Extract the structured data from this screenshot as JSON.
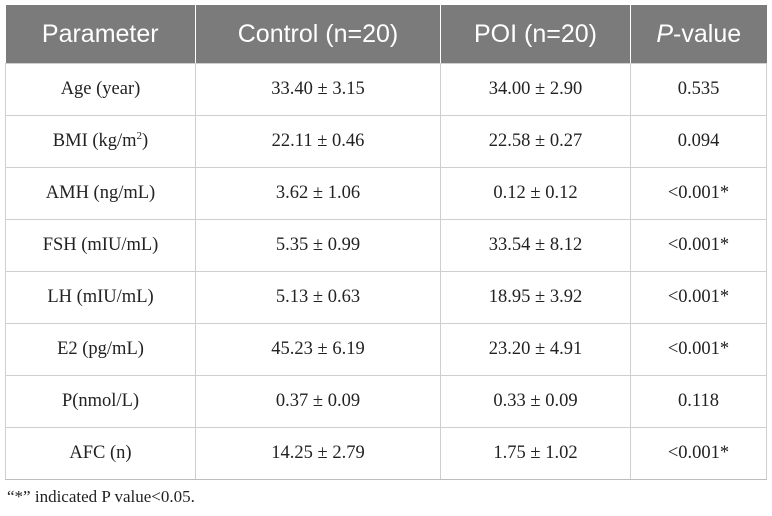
{
  "table": {
    "headers": [
      "Parameter",
      "Control (n=20)",
      "POI (n=20)",
      "P",
      "-value"
    ],
    "rows": [
      {
        "param": "Age (year)",
        "control": "33.40 ± 3.15",
        "poi": "34.00 ± 2.90",
        "p": "0.535"
      },
      {
        "param_main": "BMI (kg/m",
        "param_sup": "2",
        "param_end": ")",
        "control": "22.11 ± 0.46",
        "poi": "22.58 ± 0.27",
        "p": "0.094"
      },
      {
        "param": "AMH (ng/mL)",
        "control": "3.62 ± 1.06",
        "poi": "0.12 ± 0.12",
        "p": "<0.001*"
      },
      {
        "param": "FSH (mIU/mL)",
        "control": "5.35 ± 0.99",
        "poi": "33.54 ± 8.12",
        "p": "<0.001*"
      },
      {
        "param": "LH (mIU/mL)",
        "control": "5.13 ± 0.63",
        "poi": "18.95 ± 3.92",
        "p": "<0.001*"
      },
      {
        "param": "E2 (pg/mL)",
        "control": "45.23 ± 6.19",
        "poi": "23.20 ± 4.91",
        "p": "<0.001*"
      },
      {
        "param": "P(nmol/L)",
        "control": "0.37 ± 0.09",
        "poi": "0.33 ± 0.09",
        "p": "0.118"
      },
      {
        "param": "AFC (n)",
        "control": "14.25 ± 2.79",
        "poi": "1.75 ± 1.02",
        "p": "<0.001*"
      }
    ]
  },
  "footnote": "“*” indicated P value<0.05."
}
